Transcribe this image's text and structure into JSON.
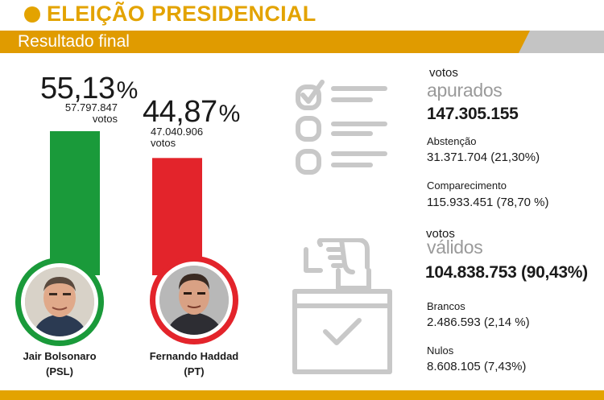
{
  "header": {
    "title": "ELEIÇÃO PRESIDENCIAL",
    "subtitle": "Resultado final"
  },
  "chart_data": {
    "type": "bar",
    "categories": [
      "Jair Bolsonaro (PSL)",
      "Fernando Haddad (PT)"
    ],
    "values": [
      55.13,
      44.87
    ],
    "title": "",
    "xlabel": "",
    "ylabel": "",
    "ylim": [
      0,
      55.13
    ],
    "grid": false,
    "candidates": [
      {
        "name": "Jair Bolsonaro",
        "party": "(PSL)",
        "percent_text": "55,13",
        "percent_unit": "%",
        "votes_value": "57.797.847",
        "votes_label": "votos",
        "value": 55.13,
        "color": "#1a9a3a",
        "ring_color": "#1a9a3a"
      },
      {
        "name": "Fernando Haddad",
        "party": "(PT)",
        "percent_text": "44,87",
        "percent_unit": "%",
        "votes_value": "47.040.906",
        "votes_label": "votos",
        "value": 44.87,
        "color": "#e3242b",
        "ring_color": "#e3242b"
      }
    ]
  },
  "stats": {
    "apurados": {
      "label_top": "votos",
      "label_bottom": "apurados",
      "value": "147.305.155"
    },
    "abstencao": {
      "label": "Abstenção",
      "value": "31.371.704 (21,30%)"
    },
    "comparecimento": {
      "label": "Comparecimento",
      "value": "115.933.451 (78,70 %)"
    },
    "validos": {
      "label_top": "votos",
      "label_bottom": "válidos",
      "value": "104.838.753 (90,43%)"
    },
    "brancos": {
      "label": "Brancos",
      "value": "2.486.593 (2,14 %)"
    },
    "nulos": {
      "label": "Nulos",
      "value": "8.608.105 (7,43%)"
    }
  },
  "icons": {
    "checklist": "checklist-icon",
    "ballot_box": "ballot-box-icon",
    "icon_color": "#c8c8c8"
  },
  "colors": {
    "accent": "#e3a300",
    "banner": "#e09b00",
    "banner_grey": "#c4c4c4"
  }
}
